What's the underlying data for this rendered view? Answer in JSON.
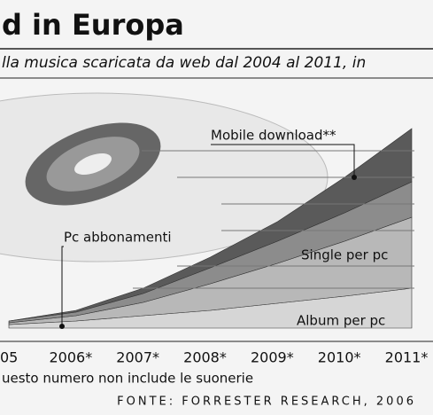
{
  "chart_data": {
    "type": "stacked_area",
    "title": "d in Europa",
    "subtitle": "lla musica scaricata da web dal 2004 al 2011, in",
    "categories": [
      "05",
      "2006*",
      "2007*",
      "2008*",
      "2009*",
      "2010*",
      "2011*"
    ],
    "series": [
      {
        "name": "Album per pc",
        "color": "#d6d6d6",
        "values": [
          4,
          8,
          14,
          20,
          28,
          36,
          45
        ]
      },
      {
        "name": "Single per pc",
        "color": "#b8b8b8",
        "values": [
          2,
          6,
          15,
          30,
          45,
          62,
          80
        ]
      },
      {
        "name": "Pc abbonamenti",
        "color": "#8c8c8c",
        "values": [
          2,
          4,
          10,
          18,
          25,
          32,
          40
        ]
      },
      {
        "name": "Mobile download**",
        "color": "#5a5a5a",
        "values": [
          0,
          2,
          6,
          12,
          22,
          40,
          60
        ]
      }
    ],
    "ylim": [
      0,
      250
    ],
    "footnote": "uesto numero non include le suonerie",
    "source": "FONTE: FORRESTER RESEARCH, 2006"
  }
}
